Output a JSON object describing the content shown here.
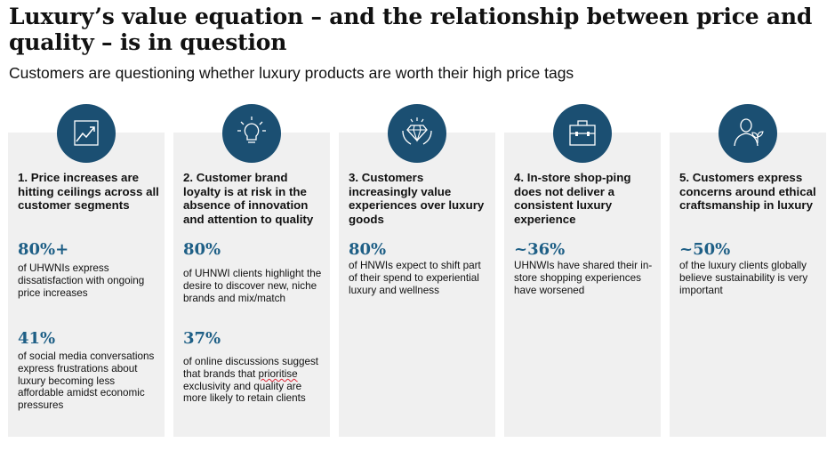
{
  "title": "Luxury’s value equation – and the relationship between price and quality – is in question",
  "subtitle": "Customers are questioning whether luxury products are worth their high price tags",
  "cards": [
    {
      "icon": "growth-chart-icon",
      "title": "1. Price increases are hitting ceilings across all customer segments",
      "stats": [
        {
          "value": "80%+",
          "text": "of UHWNIs express dissatisfaction with ongoing price increases"
        },
        {
          "value": "41%",
          "text": "of social media conversations express frustrations about luxury becoming less affordable amidst economic pressures"
        }
      ]
    },
    {
      "icon": "lightbulb-icon",
      "title": "2. Customer brand loyalty is at risk in the absence of innovation and attention to quality",
      "stats": [
        {
          "value": "80%",
          "text": "of UHNWI clients highlight the desire to discover new, niche brands and mix/match"
        },
        {
          "value": "37%",
          "text_before": "of online discussions suggest that brands that ",
          "text_marked": "prioritise",
          "text_after": " exclusivity and quality are more likely to retain clients"
        }
      ]
    },
    {
      "icon": "diamond-hands-icon",
      "title": "3. Customers increasingly value experiences over luxury goods",
      "stats": [
        {
          "value": "80%",
          "text": "of HNWIs expect to shift part of their spend to experiential luxury and wellness"
        }
      ]
    },
    {
      "icon": "shopping-bag-icon",
      "title": "4. In-store shop-ping does not deliver a consistent luxury experience",
      "stats": [
        {
          "value": "~36%",
          "text": "UHNWIs have shared their in-store shopping experiences have worsened"
        }
      ]
    },
    {
      "icon": "person-plant-icon",
      "title": "5. Customers express concerns around ethical craftsmanship in luxury",
      "stats": [
        {
          "value": "~50%",
          "text": "of the luxury clients globally believe sustainability is very important"
        }
      ]
    }
  ],
  "colors": {
    "accent": "#1b4f72",
    "stat": "#1e5f86",
    "card_bg": "#f0f0f0"
  }
}
